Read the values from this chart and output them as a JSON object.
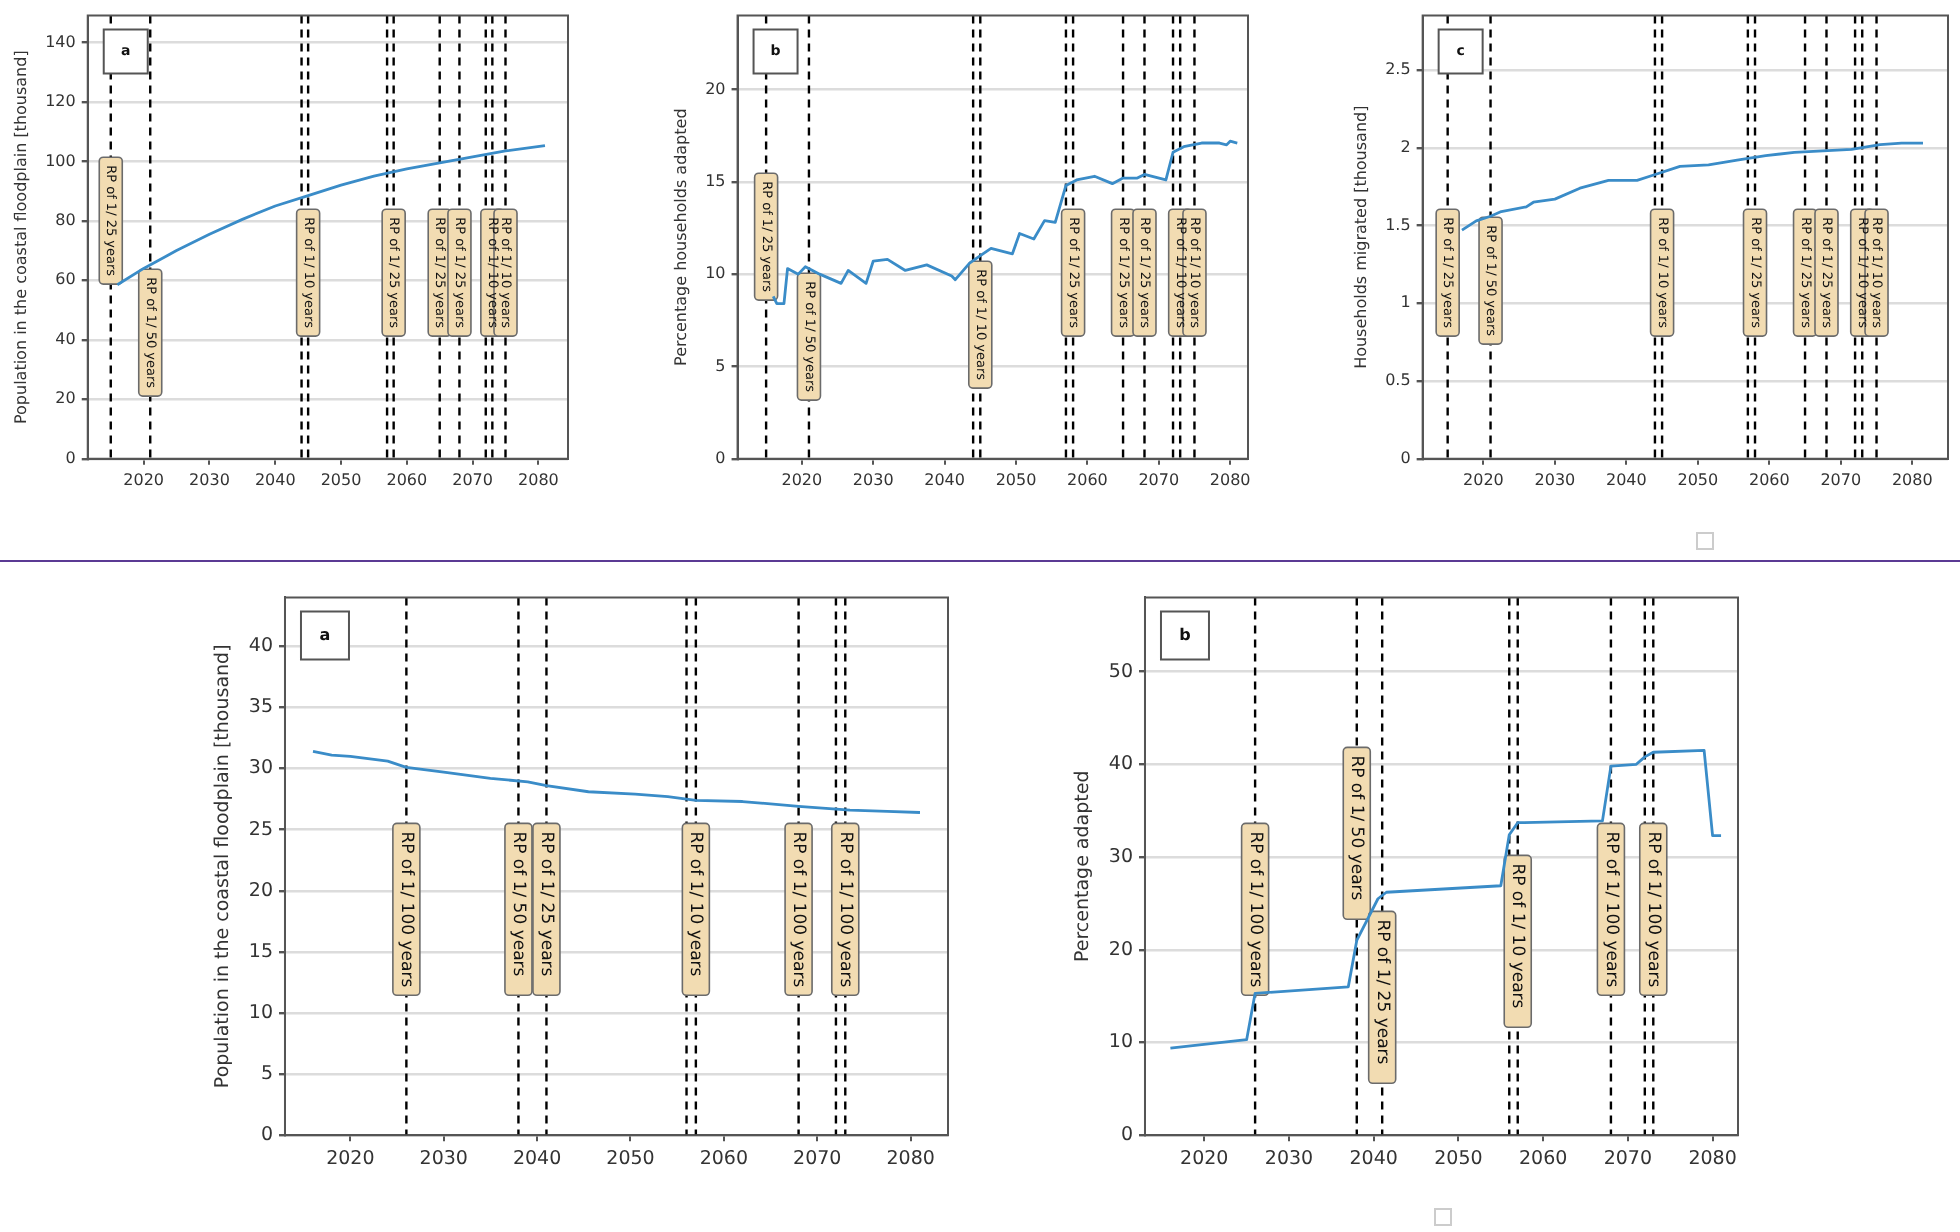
{
  "chart_data": [
    {
      "type": "line",
      "ylabel": "Population in the coastal floodplain [thousand]",
      "annotations": [
        "a"
      ],
      "xlim": [
        2011.5,
        2084.5
      ],
      "ylim": [
        0,
        149
      ],
      "xticks": [
        2020,
        2030,
        2040,
        2050,
        2060,
        2070,
        2080
      ],
      "yticks": [
        0,
        20,
        40,
        60,
        80,
        100,
        120,
        140
      ],
      "grid": "y",
      "x": [
        2016,
        2020,
        2025,
        2030,
        2035,
        2040,
        2045,
        2050,
        2055,
        2060,
        2065,
        2070,
        2075,
        2081
      ],
      "series": [
        {
          "color": "#3a8cc8",
          "values": [
            58.5,
            64,
            70,
            75.5,
            80.5,
            85,
            88.5,
            92,
            95,
            97.5,
            99.5,
            101.5,
            103.5,
            105.3
          ]
        }
      ],
      "ref_lines": [
        {
          "axis": "x",
          "value": 2015,
          "label": "RP of 1/ 25 years",
          "color": "#000000",
          "line_style": "dashed"
        },
        {
          "axis": "x",
          "value": 2021,
          "label": "RP of 1/ 50 years",
          "color": "#000000",
          "line_style": "dashed"
        },
        {
          "axis": "x",
          "value": 2044,
          "label": null,
          "color": "#000000",
          "line_style": "dashed"
        },
        {
          "axis": "x",
          "value": 2045,
          "label": "RP of 1/ 10 years",
          "color": "#000000",
          "line_style": "dashed"
        },
        {
          "axis": "x",
          "value": 2057,
          "label": null,
          "color": "#000000",
          "line_style": "dashed"
        },
        {
          "axis": "x",
          "value": 2058,
          "label": "RP of 1/ 25 years",
          "color": "#000000",
          "line_style": "dashed"
        },
        {
          "axis": "x",
          "value": 2065,
          "label": "RP of 1/ 25 years",
          "color": "#000000",
          "line_style": "dashed"
        },
        {
          "axis": "x",
          "value": 2068,
          "label": "RP of 1/ 25 years",
          "color": "#000000",
          "line_style": "dashed"
        },
        {
          "axis": "x",
          "value": 2072,
          "label": null,
          "color": "#000000",
          "line_style": "dashed"
        },
        {
          "axis": "x",
          "value": 2073,
          "label": "RP of 1/ 10 years",
          "color": "#000000",
          "line_style": "dashed"
        },
        {
          "axis": "x",
          "value": 2075,
          "label": "RP of 1/ 10 years",
          "color": "#000000",
          "line_style": "dashed"
        }
      ]
    },
    {
      "type": "line",
      "ylabel": "Percentage households adapted",
      "annotations": [
        "b"
      ],
      "xlim": [
        2011,
        2082.5
      ],
      "ylim": [
        0,
        24
      ],
      "xticks": [
        2020,
        2030,
        2040,
        2050,
        2060,
        2070,
        2080
      ],
      "yticks": [
        0,
        5,
        10,
        15,
        20
      ],
      "grid": "y",
      "x": [
        2016,
        2016.5,
        2017.5,
        2018,
        2019.5,
        2020.5,
        2022.5,
        2025.5,
        2026.5,
        2029,
        2030,
        2032,
        2034.5,
        2037.5,
        2041,
        2041.5,
        2043.5,
        2046.5,
        2049.5,
        2050.5,
        2052.5,
        2054,
        2055.5,
        2057,
        2058.5,
        2061,
        2063.5,
        2065,
        2067,
        2068,
        2071,
        2072,
        2073.5,
        2076,
        2078.5,
        2079.5,
        2080,
        2081
      ],
      "series": [
        {
          "color": "#3a8cc8",
          "values": [
            8.8,
            8.4,
            8.4,
            10.3,
            10.0,
            10.4,
            10.0,
            9.5,
            10.2,
            9.5,
            10.7,
            10.8,
            10.2,
            10.5,
            9.9,
            9.7,
            10.6,
            11.4,
            11.1,
            12.2,
            11.9,
            12.9,
            12.8,
            14.8,
            15.1,
            15.3,
            14.9,
            15.2,
            15.2,
            15.4,
            15.1,
            16.6,
            16.9,
            17.1,
            17.1,
            17.0,
            17.2,
            17.1
          ]
        }
      ],
      "ref_lines": [
        {
          "axis": "x",
          "value": 2015,
          "label": "RP of 1/ 25 years",
          "color": "#000000",
          "line_style": "dashed"
        },
        {
          "axis": "x",
          "value": 2021,
          "label": "RP of 1/ 50 years",
          "color": "#000000",
          "line_style": "dashed"
        },
        {
          "axis": "x",
          "value": 2044,
          "label": null,
          "color": "#000000",
          "line_style": "dashed"
        },
        {
          "axis": "x",
          "value": 2045,
          "label": "RP of 1/ 10 years",
          "color": "#000000",
          "line_style": "dashed"
        },
        {
          "axis": "x",
          "value": 2057,
          "label": null,
          "color": "#000000",
          "line_style": "dashed"
        },
        {
          "axis": "x",
          "value": 2058,
          "label": "RP of 1/ 25 years",
          "color": "#000000",
          "line_style": "dashed"
        },
        {
          "axis": "x",
          "value": 2065,
          "label": "RP of 1/ 25 years",
          "color": "#000000",
          "line_style": "dashed"
        },
        {
          "axis": "x",
          "value": 2068,
          "label": "RP of 1/ 25 years",
          "color": "#000000",
          "line_style": "dashed"
        },
        {
          "axis": "x",
          "value": 2072,
          "label": null,
          "color": "#000000",
          "line_style": "dashed"
        },
        {
          "axis": "x",
          "value": 2073,
          "label": "RP of 1/ 10 years",
          "color": "#000000",
          "line_style": "dashed"
        },
        {
          "axis": "x",
          "value": 2075,
          "label": "RP of 1/ 10 years",
          "color": "#000000",
          "line_style": "dashed"
        }
      ]
    },
    {
      "type": "line",
      "ylabel": "Households migrated [thousand]",
      "annotations": [
        "c"
      ],
      "xlim": [
        2011.5,
        2085
      ],
      "ylim": [
        0,
        2.85
      ],
      "xticks": [
        2020,
        2030,
        2040,
        2050,
        2060,
        2070,
        2080
      ],
      "yticks": [
        0,
        0.5,
        1,
        1.5,
        2,
        2.5
      ],
      "grid": "y",
      "x": [
        2017,
        2019,
        2021,
        2022.5,
        2026,
        2027,
        2030,
        2033.5,
        2037.5,
        2041.5,
        2043.5,
        2047.5,
        2051.5,
        2055.5,
        2059.5,
        2063.5,
        2067.5,
        2071.5,
        2075.5,
        2078.5,
        2081.5
      ],
      "series": [
        {
          "color": "#3a8cc8",
          "values": [
            1.47,
            1.53,
            1.56,
            1.59,
            1.62,
            1.65,
            1.67,
            1.74,
            1.79,
            1.79,
            1.82,
            1.88,
            1.89,
            1.92,
            1.95,
            1.97,
            1.98,
            1.99,
            2.02,
            2.03,
            2.03
          ]
        }
      ],
      "ref_lines": [
        {
          "axis": "x",
          "value": 2015,
          "label": "RP of 1/ 25 years",
          "color": "#000000",
          "line_style": "dashed"
        },
        {
          "axis": "x",
          "value": 2021,
          "label": "RP of 1/ 50 years",
          "color": "#000000",
          "line_style": "dashed"
        },
        {
          "axis": "x",
          "value": 2044,
          "label": null,
          "color": "#000000",
          "line_style": "dashed"
        },
        {
          "axis": "x",
          "value": 2045,
          "label": "RP of 1/ 10 years",
          "color": "#000000",
          "line_style": "dashed"
        },
        {
          "axis": "x",
          "value": 2057,
          "label": null,
          "color": "#000000",
          "line_style": "dashed"
        },
        {
          "axis": "x",
          "value": 2058,
          "label": "RP of 1/ 25 years",
          "color": "#000000",
          "line_style": "dashed"
        },
        {
          "axis": "x",
          "value": 2065,
          "label": "RP of 1/ 25 years",
          "color": "#000000",
          "line_style": "dashed"
        },
        {
          "axis": "x",
          "value": 2068,
          "label": "RP of 1/ 25 years",
          "color": "#000000",
          "line_style": "dashed"
        },
        {
          "axis": "x",
          "value": 2072,
          "label": null,
          "color": "#000000",
          "line_style": "dashed"
        },
        {
          "axis": "x",
          "value": 2073,
          "label": "RP of 1/ 10 years",
          "color": "#000000",
          "line_style": "dashed"
        },
        {
          "axis": "x",
          "value": 2075,
          "label": "RP of 1/ 10 years",
          "color": "#000000",
          "line_style": "dashed"
        }
      ]
    },
    {
      "type": "line",
      "ylabel": "Population in the coastal floodplain [thousand]",
      "annotations": [
        "a"
      ],
      "xlim": [
        2013,
        2084
      ],
      "ylim": [
        0,
        44
      ],
      "xticks": [
        2020,
        2030,
        2040,
        2050,
        2060,
        2070,
        2080
      ],
      "yticks": [
        0,
        5,
        10,
        15,
        20,
        25,
        30,
        35,
        40
      ],
      "grid": "y",
      "x": [
        2016,
        2018,
        2020,
        2024,
        2026,
        2030,
        2035,
        2039,
        2041,
        2045.5,
        2050.5,
        2054,
        2057,
        2062,
        2068,
        2073.5,
        2077.5,
        2081
      ],
      "series": [
        {
          "color": "#3a8cc8",
          "values": [
            31.4,
            31.1,
            31.0,
            30.6,
            30.1,
            29.7,
            29.2,
            28.9,
            28.6,
            28.1,
            27.9,
            27.7,
            27.4,
            27.3,
            26.9,
            26.6,
            26.5,
            26.4
          ]
        }
      ],
      "ref_lines": [
        {
          "axis": "x",
          "value": 2026,
          "label": "RP of 1/ 100 years",
          "color": "#000000",
          "line_style": "dashed"
        },
        {
          "axis": "x",
          "value": 2038,
          "label": "RP of 1/ 50 years",
          "color": "#000000",
          "line_style": "dashed"
        },
        {
          "axis": "x",
          "value": 2041,
          "label": "RP of 1/ 25 years",
          "color": "#000000",
          "line_style": "dashed"
        },
        {
          "axis": "x",
          "value": 2056,
          "label": null,
          "color": "#000000",
          "line_style": "dashed"
        },
        {
          "axis": "x",
          "value": 2057,
          "label": "RP of 1/ 10 years",
          "color": "#000000",
          "line_style": "dashed"
        },
        {
          "axis": "x",
          "value": 2068,
          "label": "RP of 1/ 100 years",
          "color": "#000000",
          "line_style": "dashed"
        },
        {
          "axis": "x",
          "value": 2072,
          "label": null,
          "color": "#000000",
          "line_style": "dashed"
        },
        {
          "axis": "x",
          "value": 2073,
          "label": "RP of 1/ 100 years",
          "color": "#000000",
          "line_style": "dashed"
        }
      ]
    },
    {
      "type": "line",
      "ylabel": "Percentage adapted",
      "annotations": [
        "b"
      ],
      "xlim": [
        2013,
        2083
      ],
      "ylim": [
        0,
        58
      ],
      "xticks": [
        2020,
        2030,
        2040,
        2050,
        2060,
        2070,
        2080
      ],
      "yticks": [
        0,
        10,
        20,
        30,
        40,
        50
      ],
      "grid": "y",
      "x": [
        2016,
        2025,
        2026,
        2037,
        2038,
        2040.5,
        2041.5,
        2055,
        2056,
        2057,
        2067,
        2068,
        2071,
        2072,
        2073,
        2079,
        2080,
        2081
      ],
      "series": [
        {
          "color": "#3a8cc8",
          "values": [
            9.4,
            10.3,
            15.3,
            16.0,
            21,
            25.5,
            26.2,
            26.9,
            32.4,
            33.7,
            33.9,
            39.8,
            40.0,
            40.8,
            41.3,
            41.5,
            32.3,
            32.3
          ]
        }
      ],
      "ref_lines": [
        {
          "axis": "x",
          "value": 2026,
          "label": "RP of 1/ 100 years",
          "color": "#000000",
          "line_style": "dashed"
        },
        {
          "axis": "x",
          "value": 2038,
          "label": "RP of 1/ 50 years",
          "color": "#000000",
          "line_style": "dashed"
        },
        {
          "axis": "x",
          "value": 2041,
          "label": "RP of 1/ 25 years",
          "color": "#000000",
          "line_style": "dashed"
        },
        {
          "axis": "x",
          "value": 2056,
          "label": null,
          "color": "#000000",
          "line_style": "dashed"
        },
        {
          "axis": "x",
          "value": 2057,
          "label": "RP of 1/ 10 years",
          "color": "#000000",
          "line_style": "dashed"
        },
        {
          "axis": "x",
          "value": 2068,
          "label": "RP of 1/ 100 years",
          "color": "#000000",
          "line_style": "dashed"
        },
        {
          "axis": "x",
          "value": 2072,
          "label": null,
          "color": "#000000",
          "line_style": "dashed"
        },
        {
          "axis": "x",
          "value": 2073,
          "label": "RP of 1/ 100 years",
          "color": "#000000",
          "line_style": "dashed"
        }
      ]
    }
  ]
}
